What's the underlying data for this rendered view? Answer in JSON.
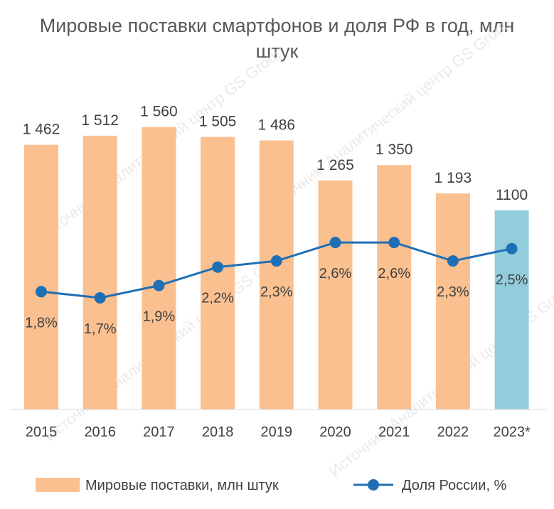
{
  "chart_data": {
    "type": "bar",
    "title": "Мировые поставки смартфонов и доля РФ в год, млн штук",
    "categories": [
      "2015",
      "2016",
      "2017",
      "2018",
      "2019",
      "2020",
      "2021",
      "2022",
      "2023*"
    ],
    "series": [
      {
        "name": "Мировые поставки, млн штук",
        "type": "bar",
        "values": [
          1462,
          1512,
          1560,
          1505,
          1486,
          1265,
          1350,
          1193,
          1100
        ],
        "labels": [
          "1 462",
          "1 512",
          "1 560",
          "1 505",
          "1 486",
          "1 265",
          "1 350",
          "1 193",
          "1100"
        ],
        "colors": [
          "#fac090",
          "#fac090",
          "#fac090",
          "#fac090",
          "#fac090",
          "#fac090",
          "#fac090",
          "#fac090",
          "#92cddc"
        ]
      },
      {
        "name": "Доля России, %",
        "type": "line",
        "values": [
          1.8,
          1.7,
          1.9,
          2.2,
          2.3,
          2.6,
          2.6,
          2.3,
          2.5
        ],
        "labels": [
          "1,8%",
          "1,7%",
          "1,9%",
          "2,2%",
          "2,3%",
          "2,6%",
          "2,6%",
          "2,3%",
          "2,5%"
        ],
        "color": "#1f6fb5"
      }
    ],
    "ylim": [
      0,
      1700
    ],
    "y2lim": [
      0,
      5.2
    ],
    "grid": false,
    "legend": "bottom"
  },
  "watermark": "Источник: Аналитический центр GS Group"
}
